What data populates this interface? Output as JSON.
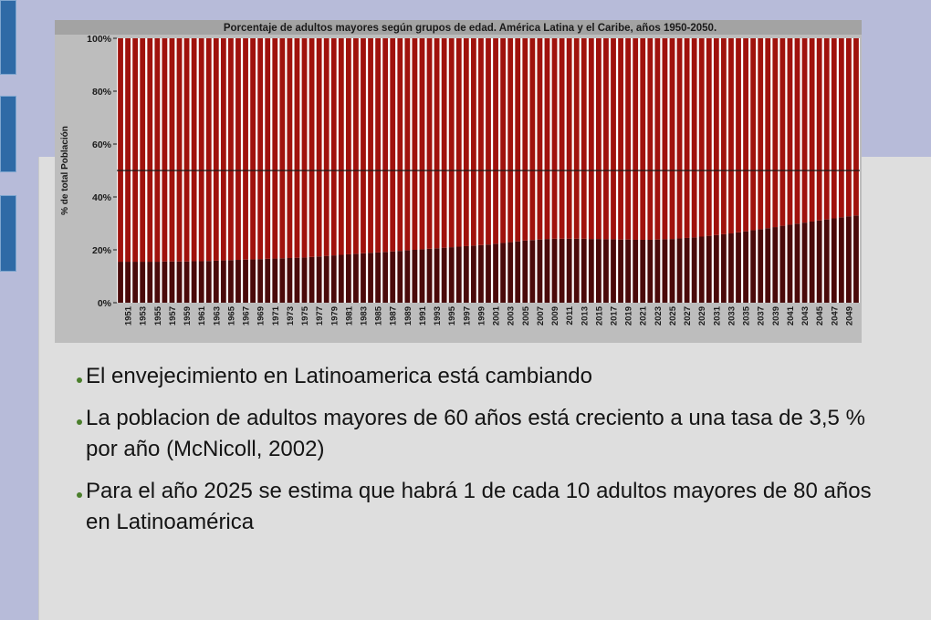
{
  "slide": {
    "bullets": [
      "El envejecimiento en Latinoamerica está cambiando",
      "La poblacion de adultos mayores de 60 años está creciento a una tasa de 3,5 % por año (McNicoll, 2002)",
      "Para el año 2025 se estima que habrá 1 de cada 10 adultos mayores de 80 años en Latinoamérica"
    ]
  },
  "colors": {
    "background": "#b7bbd9",
    "panel": "#dedede",
    "older_adults": "#4a0a0a",
    "rest": "#a0120d",
    "bullet": "#4b7f2c"
  },
  "chart_data": {
    "type": "bar",
    "stacked": true,
    "title": "Porcentaje de adultos mayores según grupos de edad. América Latina y el Caribe, años 1950-2050.",
    "ylabel": "% de total Población",
    "ylim": [
      0,
      100
    ],
    "yticks": [
      "0%",
      "20%",
      "40%",
      "60%",
      "80%",
      "100%"
    ],
    "reference_line": 50,
    "xtick_labels": [
      "1951",
      "1953",
      "1955",
      "1957",
      "1959",
      "1961",
      "1963",
      "1965",
      "1967",
      "1969",
      "1971",
      "1973",
      "1975",
      "1977",
      "1979",
      "1981",
      "1983",
      "1985",
      "1987",
      "1989",
      "1991",
      "1993",
      "1995",
      "1997",
      "1999",
      "2001",
      "2003",
      "2005",
      "2007",
      "2009",
      "2011",
      "2013",
      "2015",
      "2017",
      "2019",
      "2021",
      "2023",
      "2025",
      "2027",
      "2029",
      "2031",
      "2033",
      "2035",
      "2037",
      "2039",
      "2041",
      "2043",
      "2045",
      "2047",
      "2049"
    ],
    "categories": [
      1950,
      1951,
      1952,
      1953,
      1954,
      1955,
      1956,
      1957,
      1958,
      1959,
      1960,
      1961,
      1962,
      1963,
      1964,
      1965,
      1966,
      1967,
      1968,
      1969,
      1970,
      1971,
      1972,
      1973,
      1974,
      1975,
      1976,
      1977,
      1978,
      1979,
      1980,
      1981,
      1982,
      1983,
      1984,
      1985,
      1986,
      1987,
      1988,
      1989,
      1990,
      1991,
      1992,
      1993,
      1994,
      1995,
      1996,
      1997,
      1998,
      1999,
      2000,
      2001,
      2002,
      2003,
      2004,
      2005,
      2006,
      2007,
      2008,
      2009,
      2010,
      2011,
      2012,
      2013,
      2014,
      2015,
      2016,
      2017,
      2018,
      2019,
      2020,
      2021,
      2022,
      2023,
      2024,
      2025,
      2026,
      2027,
      2028,
      2029,
      2030,
      2031,
      2032,
      2033,
      2034,
      2035,
      2036,
      2037,
      2038,
      2039,
      2040,
      2041,
      2042,
      2043,
      2044,
      2045,
      2046,
      2047,
      2048,
      2049,
      2050
    ],
    "series": [
      {
        "values": [
          15.5,
          15.5,
          15.5,
          15.5,
          15.5,
          15.5,
          15.6,
          15.6,
          15.6,
          15.6,
          15.7,
          15.7,
          15.8,
          15.9,
          16.0,
          16.1,
          16.2,
          16.3,
          16.4,
          16.5,
          16.6,
          16.7,
          16.8,
          16.9,
          17.0,
          17.1,
          17.3,
          17.5,
          17.7,
          17.9,
          18.1,
          18.3,
          18.5,
          18.7,
          18.9,
          19.0,
          19.2,
          19.4,
          19.6,
          19.8,
          20.0,
          20.2,
          20.4,
          20.6,
          20.8,
          21.0,
          21.2,
          21.4,
          21.6,
          21.8,
          22.0,
          22.3,
          22.6,
          22.9,
          23.2,
          23.5,
          23.7,
          23.9,
          24.1,
          24.2,
          24.2,
          24.2,
          24.2,
          24.2,
          24.1,
          24.1,
          24.0,
          24.0,
          23.9,
          23.9,
          23.8,
          23.8,
          23.8,
          23.9,
          24.0,
          24.1,
          24.3,
          24.5,
          24.7,
          25.0,
          25.3,
          25.6,
          25.9,
          26.2,
          26.6,
          27.0,
          27.4,
          27.8,
          28.2,
          28.6,
          29.1,
          29.5,
          29.9,
          30.3,
          30.7,
          31.1,
          31.5,
          31.9,
          32.3,
          32.7,
          33.0
        ]
      },
      {
        "values": [
          84.5,
          84.5,
          84.5,
          84.5,
          84.5,
          84.5,
          84.4,
          84.4,
          84.4,
          84.4,
          84.3,
          84.3,
          84.2,
          84.1,
          84.0,
          83.9,
          83.8,
          83.7,
          83.6,
          83.5,
          83.4,
          83.3,
          83.2,
          83.1,
          83.0,
          82.9,
          82.7,
          82.5,
          82.3,
          82.1,
          81.9,
          81.7,
          81.5,
          81.3,
          81.1,
          81.0,
          80.8,
          80.6,
          80.4,
          80.2,
          80.0,
          79.8,
          79.6,
          79.4,
          79.2,
          79.0,
          78.8,
          78.6,
          78.4,
          78.2,
          78.0,
          77.7,
          77.4,
          77.1,
          76.8,
          76.5,
          76.3,
          76.1,
          75.9,
          75.8,
          75.8,
          75.8,
          75.8,
          75.8,
          75.9,
          75.9,
          76.0,
          76.0,
          76.1,
          76.1,
          76.2,
          76.2,
          76.2,
          76.1,
          76.0,
          75.9,
          75.7,
          75.5,
          75.3,
          75.0,
          74.7,
          74.4,
          74.1,
          73.8,
          73.4,
          73.0,
          72.6,
          72.2,
          71.8,
          71.4,
          70.9,
          70.5,
          70.1,
          69.7,
          69.3,
          68.9,
          68.5,
          68.1,
          67.7,
          67.3,
          67.0
        ]
      }
    ]
  }
}
